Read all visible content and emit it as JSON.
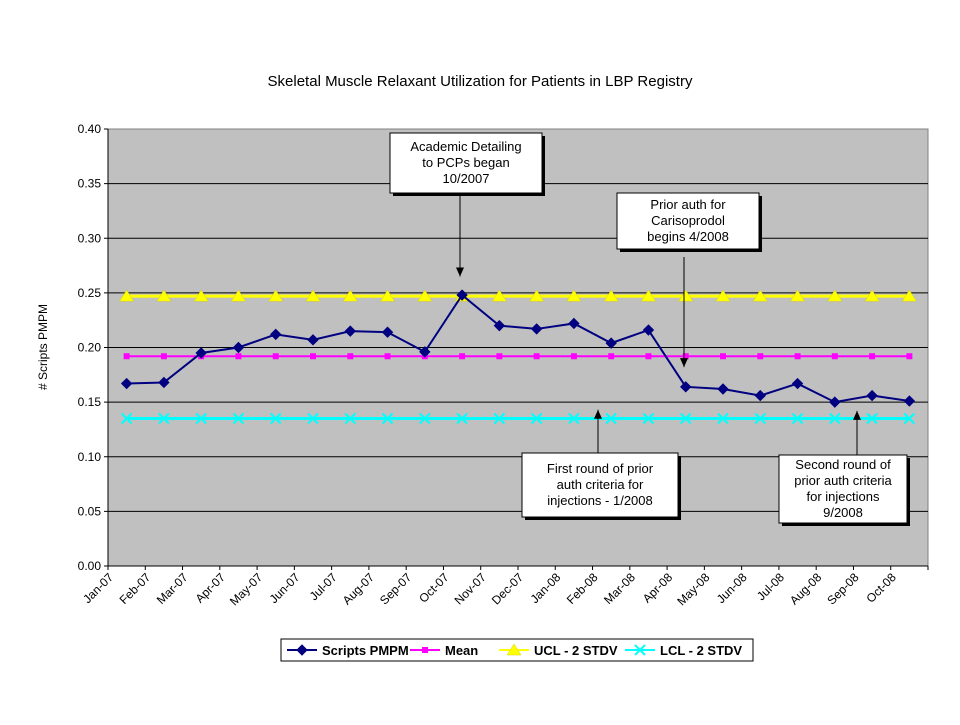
{
  "chart_data": {
    "type": "line",
    "title": "Skeletal Muscle Relaxant Utilization for Patients in LBP Registry",
    "xlabel": "",
    "ylabel": "# Scripts PMPM",
    "ylim": [
      0,
      0.4
    ],
    "yticks": [
      "0.00",
      "0.05",
      "0.10",
      "0.15",
      "0.20",
      "0.25",
      "0.30",
      "0.35",
      "0.40"
    ],
    "categories": [
      "Jan-07",
      "Feb-07",
      "Mar-07",
      "Apr-07",
      "May-07",
      "Jun-07",
      "Jul-07",
      "Aug-07",
      "Sep-07",
      "Oct-07",
      "Nov-07",
      "Dec-07",
      "Jan-08",
      "Feb-08",
      "Mar-08",
      "Apr-08",
      "May-08",
      "Jun-08",
      "Jul-08",
      "Aug-08",
      "Sep-08",
      "Oct-08"
    ],
    "grid": true,
    "plot_background": "#c0c0c0",
    "legend_position": "bottom",
    "series": [
      {
        "name": "Scripts PMPM",
        "color": "#000080",
        "marker": "diamond",
        "values": [
          0.167,
          0.168,
          0.195,
          0.2,
          0.212,
          0.207,
          0.215,
          0.214,
          0.196,
          0.248,
          0.22,
          0.217,
          0.222,
          0.204,
          0.216,
          0.164,
          0.162,
          0.156,
          0.167,
          0.15,
          0.156,
          0.151
        ]
      },
      {
        "name": "Mean",
        "color": "#ff00ff",
        "marker": "square",
        "values": [
          0.192,
          0.192,
          0.192,
          0.192,
          0.192,
          0.192,
          0.192,
          0.192,
          0.192,
          0.192,
          0.192,
          0.192,
          0.192,
          0.192,
          0.192,
          0.192,
          0.192,
          0.192,
          0.192,
          0.192,
          0.192,
          0.192
        ]
      },
      {
        "name": "UCL - 2 STDV",
        "color": "#ffff00",
        "marker": "triangle",
        "values": [
          0.247,
          0.247,
          0.247,
          0.247,
          0.247,
          0.247,
          0.247,
          0.247,
          0.247,
          0.247,
          0.247,
          0.247,
          0.247,
          0.247,
          0.247,
          0.247,
          0.247,
          0.247,
          0.247,
          0.247,
          0.247,
          0.247
        ]
      },
      {
        "name": "LCL - 2 STDV",
        "color": "#00ffff",
        "marker": "x",
        "values": [
          0.135,
          0.135,
          0.135,
          0.135,
          0.135,
          0.135,
          0.135,
          0.135,
          0.135,
          0.135,
          0.135,
          0.135,
          0.135,
          0.135,
          0.135,
          0.135,
          0.135,
          0.135,
          0.135,
          0.135,
          0.135,
          0.135
        ]
      }
    ],
    "annotations": [
      {
        "lines": [
          "Academic Detailing",
          "to PCPs began",
          "10/2007"
        ],
        "points_to_category": "Oct-07"
      },
      {
        "lines": [
          "Prior auth for",
          "Carisoprodol",
          "begins 4/2008"
        ],
        "points_to_category": "Apr-08"
      },
      {
        "lines": [
          "First round of prior",
          "auth criteria for",
          "injections - 1/2008"
        ],
        "points_to_category": "Jan-08"
      },
      {
        "lines": [
          "Second round of",
          "prior auth criteria",
          "for injections",
          "9/2008"
        ],
        "points_to_category": "Sep-08"
      }
    ]
  }
}
